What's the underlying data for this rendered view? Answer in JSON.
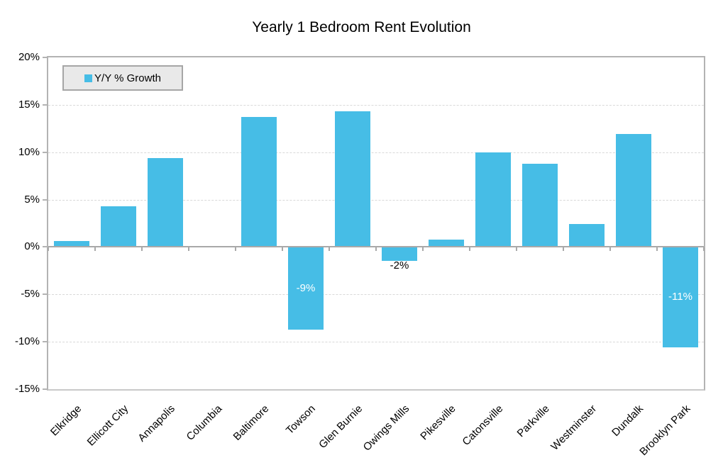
{
  "title": "Yearly 1 Bedroom Rent Evolution",
  "legend": {
    "label": "Y/Y % Growth"
  },
  "colors": {
    "bar": "#46bde6",
    "grid": "#d9d9d9",
    "axis": "#b3b3b3",
    "zero_line": "#a9a9a9",
    "legend_bg": "#e9e9e9",
    "legend_border": "#a6a6a6",
    "label_inside": "#ffffff",
    "label_outside": "#000000"
  },
  "chart_data": {
    "type": "bar",
    "title": "Yearly 1 Bedroom Rent Evolution",
    "categories": [
      "Elkridge",
      "Ellicott City",
      "Annapolis",
      "Columbia",
      "Baltimore",
      "Towson",
      "Glen Burnie",
      "Owings Mills",
      "Pikesville",
      "Catonsville",
      "Parkville",
      "Westminster",
      "Dundalk",
      "Brooklyn Park"
    ],
    "series": [
      {
        "name": "Y/Y % Growth",
        "values": [
          0.6,
          4.3,
          9.4,
          0,
          13.7,
          -8.7,
          14.3,
          -1.5,
          0.8,
          10.0,
          8.8,
          2.4,
          11.9,
          -10.6
        ]
      }
    ],
    "data_labels": [
      {
        "index": 5,
        "category": "Towson",
        "text": "-9%",
        "placement": "inside-center",
        "color": "#ffffff"
      },
      {
        "index": 7,
        "category": "Owings Mills",
        "text": "-2%",
        "placement": "outside-end",
        "color": "#000000"
      },
      {
        "index": 13,
        "category": "Brooklyn Park",
        "text": "-11%",
        "placement": "inside-center",
        "color": "#ffffff"
      }
    ],
    "xlabel": "",
    "ylabel": "",
    "ylim": [
      -15,
      20
    ],
    "ytick_step": 5,
    "ytick_labels": [
      "20%",
      "15%",
      "10%",
      "5%",
      "0%",
      "-5%",
      "-10%",
      "-15%"
    ],
    "xlabel_rotation_deg": 45,
    "grid": true,
    "legend_position": "top-left"
  }
}
